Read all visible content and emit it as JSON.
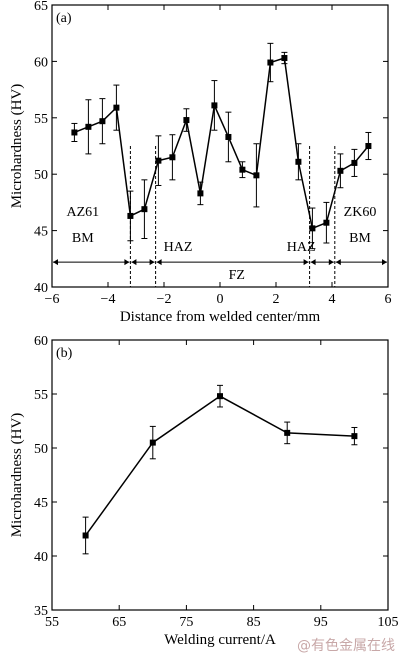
{
  "chart_data": [
    {
      "type": "line",
      "panel_label": "(a)",
      "xlabel": "Distance from welded center/mm",
      "ylabel": "Microhardness (HV)",
      "xlim": [
        -6,
        6
      ],
      "ylim": [
        40,
        65
      ],
      "xticks": [
        -6,
        -4,
        -2,
        0,
        2,
        4,
        6
      ],
      "xtick_labels": [
        "−6",
        "−4",
        "−2",
        "0",
        "2",
        "4",
        "6"
      ],
      "yticks": [
        40,
        45,
        50,
        55,
        60,
        65
      ],
      "grid": false,
      "series": [
        {
          "x": [
            -5.2,
            -4.7,
            -4.2,
            -3.7,
            -3.2,
            -2.7,
            -2.2,
            -1.7,
            -1.2,
            -0.7,
            -0.2,
            0.3,
            0.8,
            1.3,
            1.8,
            2.3,
            2.8,
            3.3,
            3.8,
            4.3,
            4.8,
            5.3
          ],
          "y": [
            53.7,
            54.2,
            54.7,
            55.9,
            46.3,
            46.9,
            51.2,
            51.5,
            54.8,
            48.3,
            56.1,
            53.3,
            50.4,
            49.9,
            59.9,
            60.3,
            51.1,
            45.2,
            45.7,
            50.3,
            51.0,
            52.5
          ],
          "error": [
            0.8,
            2.4,
            2.0,
            2.0,
            2.2,
            2.6,
            2.2,
            2.0,
            1.0,
            1.0,
            2.2,
            2.2,
            0.7,
            2.8,
            1.7,
            0.5,
            1.6,
            1.8,
            1.8,
            1.5,
            1.2,
            1.2
          ]
        }
      ],
      "zone_boundaries": [
        -3.2,
        -2.3,
        3.2,
        4.1
      ],
      "annotations": [
        {
          "text": "AZ61",
          "x": -4.9,
          "y": 46.3
        },
        {
          "text": "BM",
          "x": -4.9,
          "y": 44.0
        },
        {
          "text": "HAZ",
          "x": -1.5,
          "y": 43.2
        },
        {
          "text": "FZ",
          "x": 0.6,
          "y": 40.7
        },
        {
          "text": "HAZ",
          "x": 2.9,
          "y": 43.2
        },
        {
          "text": "ZK60",
          "x": 5.0,
          "y": 46.3
        },
        {
          "text": "BM",
          "x": 5.0,
          "y": 44.0
        }
      ]
    },
    {
      "type": "line",
      "panel_label": "(b)",
      "xlabel": "Welding current/A",
      "ylabel": "Microhardness (HV)",
      "xlim": [
        55,
        105
      ],
      "ylim": [
        35,
        60
      ],
      "xticks": [
        55,
        65,
        75,
        85,
        95,
        105
      ],
      "yticks": [
        35,
        40,
        45,
        50,
        55,
        60
      ],
      "grid": false,
      "series": [
        {
          "x": [
            60,
            70,
            80,
            90,
            100
          ],
          "y": [
            41.9,
            50.5,
            54.8,
            51.4,
            51.1
          ],
          "error": [
            1.7,
            1.5,
            1.0,
            1.0,
            0.8
          ]
        }
      ]
    }
  ],
  "watermark": "@有色金属在线"
}
